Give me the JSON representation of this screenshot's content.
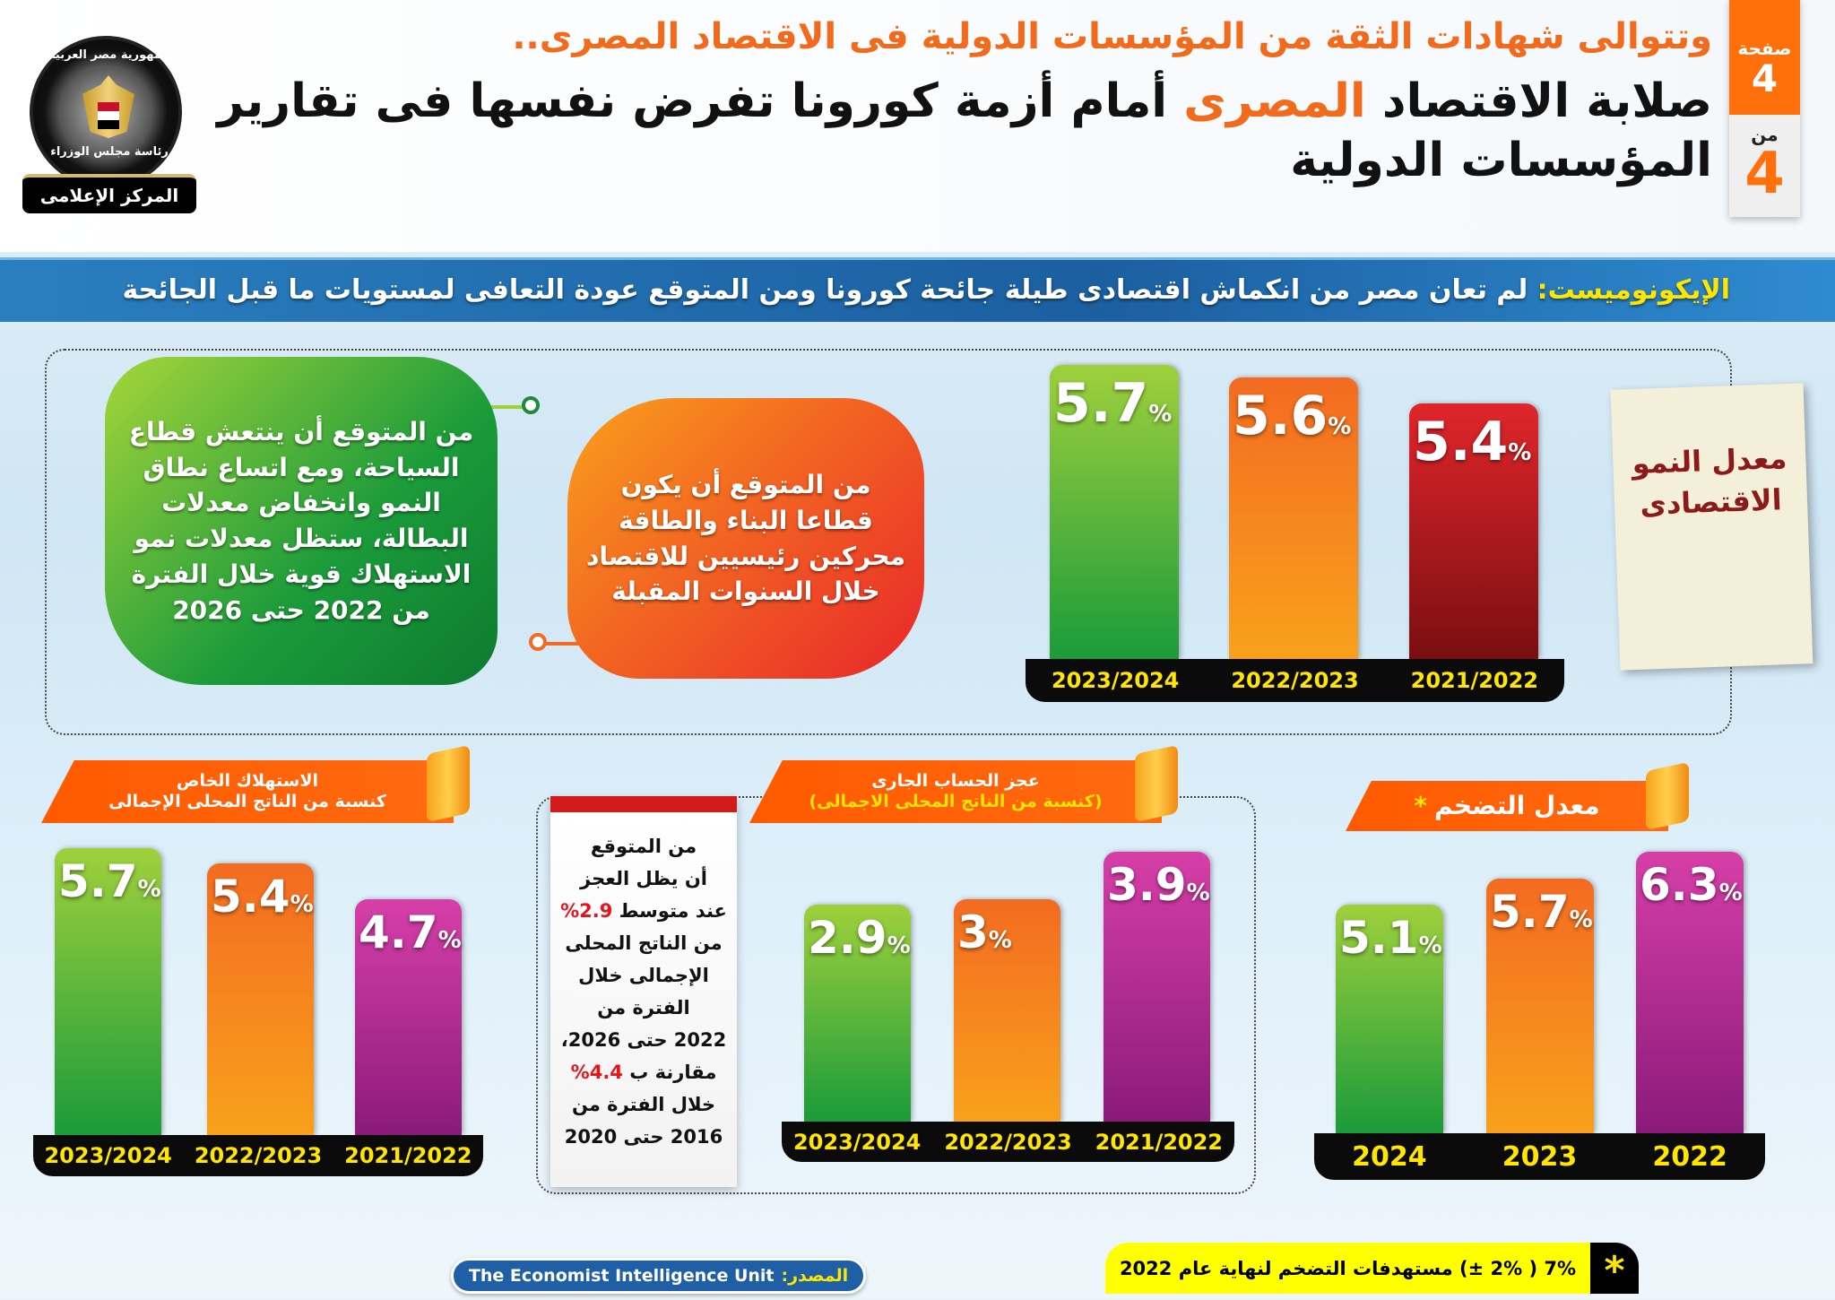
{
  "header": {
    "title_line1": "وتتوالى شهادات الثقة من المؤسسات الدولية فى الاقتصاد المصرى..",
    "title_line2_part1": "صلابة الاقتصاد",
    "title_line2_highlight": "المصرى",
    "title_line2_part2": "أمام أزمة كورونا تفرض نفسها فى تقارير المؤسسات الدولية",
    "page_label": "صفحة",
    "page_current": "4",
    "page_of_label": "من",
    "page_total": "4"
  },
  "logo": {
    "top_text": "جمهورية مصر العربية",
    "middle_text": "رئاسة مجلس الوزراء",
    "band_text": "المركز الإعلامى"
  },
  "banner": {
    "source_name": "الإيكونوميست:",
    "text": "لم تعان مصر من انكماش اقتصادى طيلة جائحة كورونا ومن المتوقع عودة التعافى لمستويات ما قبل الجائحة"
  },
  "bubbles": {
    "green": "من المتوقع أن ينتعش قطاع السياحة، ومع اتساع نطاق النمو وانخفاض معدلات البطالة، ستظل معدلات نمو الاستهلاك قوية خلال الفترة من 2022 حتى 2026",
    "orange": "من المتوقع أن يكون قطاعا البناء والطاقة محركين رئيسيين للاقتصاد خلال السنوات المقبلة"
  },
  "growth_label": "معدل النمو الاقتصادى",
  "deficit_note": {
    "l1": "من المتوقع",
    "l2": "أن يظل العجز",
    "l3a": "عند متوسط",
    "l3b": "2.9%",
    "l4": "من الناتج المحلى",
    "l5": "الإجمالى خلال",
    "l6": "الفترة من",
    "l7": "2022 حتى 2026،",
    "l8a": "مقارنة ب",
    "l8b": "4.4%",
    "l9": "خلال الفترة من",
    "l10": "2016 حتى 2020"
  },
  "ribbons": {
    "consumption_l1": "الاستهلاك الخاص",
    "consumption_l2": "كنسبة من الناتج المحلى الإجمالى",
    "deficit_l1": "عجز الحساب الجارى",
    "deficit_l2": "(كنسبة من الناتج المحلى الاجمالى)",
    "inflation": "معدل التضخم",
    "inflation_star": "*"
  },
  "source": {
    "label": "المصدر:",
    "value": "The Economist Intelligence Unit"
  },
  "footnote": {
    "star": "*",
    "text": "7% ( 2% ±) مستهدفات التضخم لنهاية عام 2022"
  },
  "chart_data": [
    {
      "type": "bar",
      "title": "معدل النمو الاقتصادى",
      "categories": [
        "2023/2024",
        "2022/2023",
        "2021/2022"
      ],
      "values": [
        5.7,
        5.6,
        5.4
      ],
      "unit": "%",
      "colors": [
        "green",
        "orange",
        "red"
      ]
    },
    {
      "type": "bar",
      "title": "الاستهلاك الخاص كنسبة من الناتج المحلى الإجمالى",
      "categories": [
        "2023/2024",
        "2022/2023",
        "2021/2022"
      ],
      "values": [
        5.7,
        5.4,
        4.7
      ],
      "unit": "%",
      "colors": [
        "green",
        "orange",
        "purple"
      ]
    },
    {
      "type": "bar",
      "title": "عجز الحساب الجارى (كنسبة من الناتج المحلى الاجمالى)",
      "categories": [
        "2023/2024",
        "2022/2023",
        "2021/2022"
      ],
      "values": [
        2.9,
        3,
        3.9
      ],
      "unit": "%",
      "colors": [
        "green",
        "orange",
        "purple"
      ]
    },
    {
      "type": "bar",
      "title": "معدل التضخم *",
      "categories": [
        "2024",
        "2023",
        "2022"
      ],
      "values": [
        5.1,
        5.7,
        6.3
      ],
      "unit": "%",
      "colors": [
        "green",
        "orange",
        "purple"
      ]
    }
  ],
  "palette": {
    "green": "#1b9b3a",
    "orange": "#f36b21",
    "red": "#b5151b",
    "purple": "#b21f94",
    "accent": "#ff6f0a",
    "banner": "#1b5fa0"
  }
}
